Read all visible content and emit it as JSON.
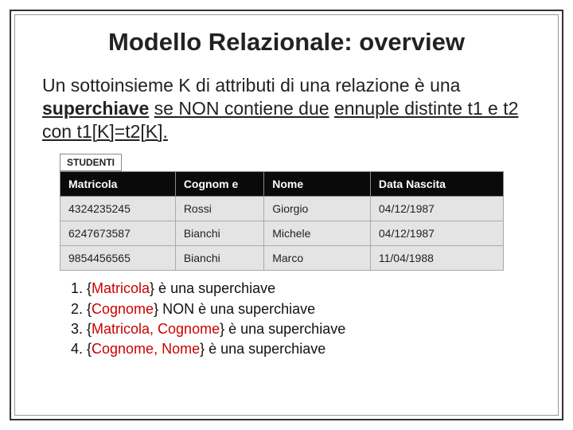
{
  "title": "Modello Relazionale: overview",
  "definition": {
    "pre": "Un sottoinsieme K di attributi di una relazione è una",
    "keyword": "superchiave",
    "post1": "se ",
    "neg": "NON contiene due",
    "post2": "ennuple distinte t1 e t2 con t1[K]=t2[K]."
  },
  "table": {
    "label": "STUDENTI",
    "columns": [
      "Matricola",
      "Cognom e",
      "Nome",
      "Data Nascita"
    ],
    "rows": [
      [
        "4324235245",
        "Rossi",
        "Giorgio",
        "04/12/1987"
      ],
      [
        "6247673587",
        "Bianchi",
        "Michele",
        "04/12/1987"
      ],
      [
        "9854456565",
        "Bianchi",
        "Marco",
        "11/04/1988"
      ]
    ],
    "col_widths": [
      "26%",
      "20%",
      "24%",
      "30%"
    ],
    "header_bg": "#0a0a0a",
    "header_fg": "#ffffff",
    "cell_bg": "#e4e4e4",
    "border_color": "#aaaaaa",
    "fontsize": 14
  },
  "notes": {
    "items": [
      {
        "pre": "{",
        "key": "Matricola",
        "post": "} è una superchiave"
      },
      {
        "pre": "{",
        "key": "Cognome",
        "post": "} NON è una superchiave"
      },
      {
        "pre": "{",
        "key": "Matricola, Cognome",
        "post": "} è una superchiave"
      },
      {
        "pre": "{",
        "key": "Cognome, Nome",
        "post": "} è una superchiave"
      }
    ],
    "key_color": "#cc0000",
    "fontsize": 18
  },
  "frame": {
    "outer_border": "#333333",
    "inner_border": "#999999",
    "background": "#ffffff"
  }
}
